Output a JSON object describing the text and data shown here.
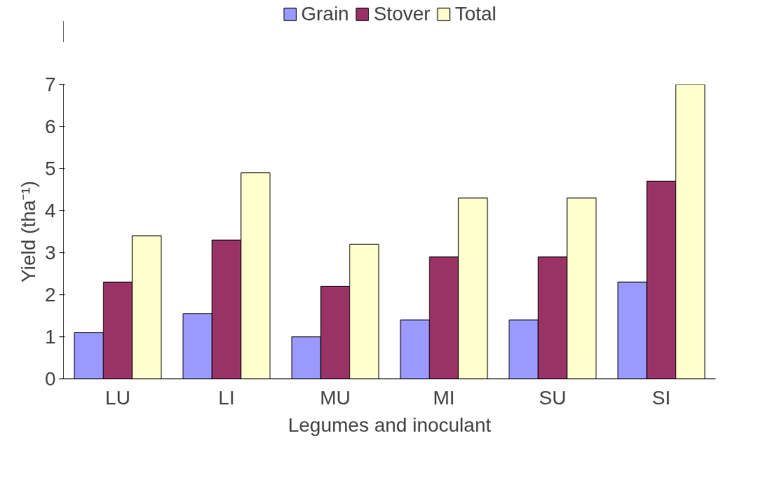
{
  "chart_data": {
    "type": "bar",
    "xlabel": "Legumes and inoculant",
    "ylabel": "Yield (tha⁻¹)",
    "categories": [
      "LU",
      "LI",
      "MU",
      "MI",
      "SU",
      "SI"
    ],
    "series": [
      {
        "name": "Grain",
        "color": "#9999ff",
        "values": [
          1.1,
          1.55,
          1.0,
          1.4,
          1.4,
          2.3
        ]
      },
      {
        "name": "Stover",
        "color": "#993366",
        "values": [
          2.3,
          3.3,
          2.2,
          2.9,
          2.9,
          4.7
        ]
      },
      {
        "name": "Total",
        "color": "#ffffcc",
        "values": [
          3.4,
          4.9,
          3.2,
          4.3,
          4.3,
          7.0
        ]
      }
    ],
    "ylim": [
      0,
      7
    ],
    "yticks": [
      0,
      1,
      2,
      3,
      4,
      5,
      6,
      7
    ],
    "legend": "top"
  }
}
